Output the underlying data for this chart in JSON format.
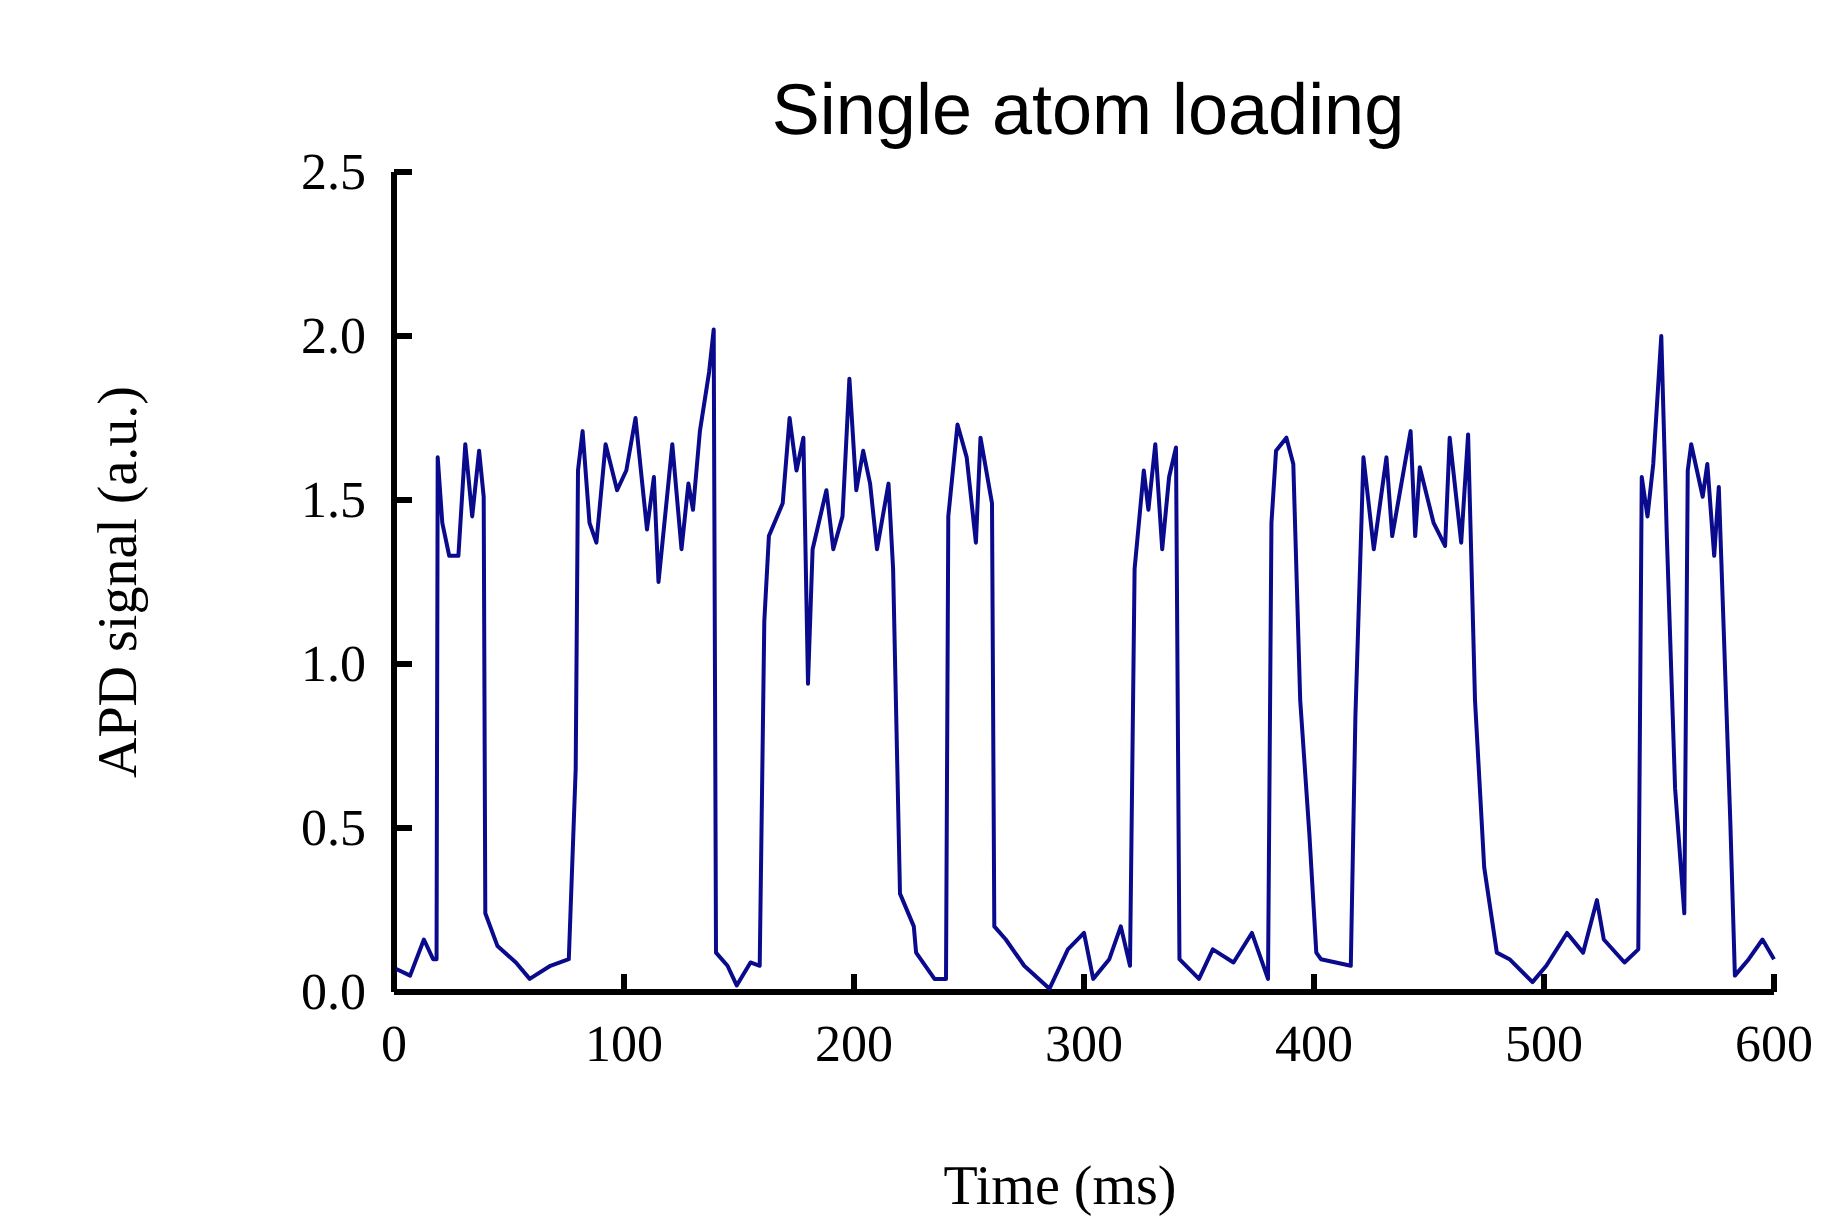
{
  "chart_data": {
    "type": "line",
    "title": "Single atom loading",
    "xlabel": "Time (ms)",
    "ylabel": "APD signal (a.u.)",
    "xlim": [
      0,
      600
    ],
    "xticks": [
      0,
      100,
      200,
      300,
      400,
      500,
      600
    ],
    "ylim": [
      0,
      2.5
    ],
    "yticks": [
      {
        "value": 0,
        "label": "0.0"
      },
      {
        "value": 0.5,
        "label": "0.5"
      },
      {
        "value": 1,
        "label": "1.0"
      },
      {
        "value": 1.5,
        "label": "1.5"
      },
      {
        "value": 2,
        "label": "2.0"
      },
      {
        "value": 2.5,
        "label": "2.5"
      }
    ],
    "grid": false,
    "marker": "none",
    "line_style": "solid",
    "series": [
      {
        "color": "#0a0a8c",
        "x": [
          1,
          7,
          13,
          17,
          18.5,
          19,
          21,
          24,
          28,
          31,
          34,
          37,
          39,
          39.7,
          45,
          53,
          59,
          68,
          76,
          79,
          80,
          82,
          85,
          88,
          92,
          97,
          101,
          105,
          110,
          113,
          115,
          121,
          125,
          128,
          130,
          133,
          137,
          139,
          140,
          145,
          149,
          155,
          159,
          161,
          163,
          169,
          172,
          175,
          178,
          180,
          182,
          188,
          191,
          195,
          198,
          201,
          204,
          207,
          210,
          215,
          217,
          220,
          226,
          227,
          235,
          240,
          241,
          245,
          249,
          253,
          255,
          260,
          261,
          266,
          274,
          285,
          293,
          300,
          304,
          311,
          316,
          320,
          322,
          326,
          328,
          331,
          334,
          337,
          340,
          341.5,
          350,
          356,
          365,
          373,
          380,
          381.5,
          383.5,
          388,
          391,
          394,
          398,
          401,
          403,
          416,
          418,
          421.5,
          426,
          431.5,
          434,
          442,
          444,
          446,
          452,
          457,
          459,
          464,
          467,
          470,
          474,
          479.5,
          485,
          495,
          501,
          510,
          517,
          523,
          526,
          535,
          541,
          542.5,
          545,
          547.5,
          551,
          553.4,
          557,
          561,
          562.5,
          564,
          569,
          571,
          574,
          576,
          581,
          583,
          589,
          595,
          600
        ],
        "values": [
          0.07,
          0.05,
          0.16,
          0.1,
          0.1,
          1.63,
          1.43,
          1.33,
          1.33,
          1.67,
          1.45,
          1.65,
          1.51,
          0.24,
          0.14,
          0.09,
          0.04,
          0.08,
          0.1,
          0.68,
          1.59,
          1.71,
          1.43,
          1.37,
          1.67,
          1.53,
          1.59,
          1.75,
          1.41,
          1.57,
          1.25,
          1.67,
          1.35,
          1.55,
          1.47,
          1.71,
          1.89,
          2.02,
          0.12,
          0.08,
          0.02,
          0.09,
          0.08,
          1.13,
          1.39,
          1.49,
          1.75,
          1.59,
          1.69,
          0.94,
          1.35,
          1.53,
          1.35,
          1.45,
          1.87,
          1.53,
          1.65,
          1.55,
          1.35,
          1.55,
          1.29,
          0.3,
          0.2,
          0.12,
          0.04,
          0.04,
          1.45,
          1.73,
          1.63,
          1.37,
          1.69,
          1.49,
          0.2,
          0.16,
          0.08,
          0.01,
          0.13,
          0.18,
          0.04,
          0.1,
          0.2,
          0.08,
          1.29,
          1.59,
          1.47,
          1.67,
          1.35,
          1.57,
          1.66,
          0.1,
          0.04,
          0.13,
          0.09,
          0.18,
          0.04,
          1.43,
          1.65,
          1.69,
          1.61,
          0.89,
          0.48,
          0.12,
          0.1,
          0.08,
          0.84,
          1.63,
          1.35,
          1.63,
          1.39,
          1.71,
          1.39,
          1.6,
          1.43,
          1.36,
          1.69,
          1.37,
          1.7,
          0.89,
          0.38,
          0.12,
          0.1,
          0.03,
          0.08,
          0.18,
          0.12,
          0.28,
          0.16,
          0.09,
          0.13,
          1.57,
          1.45,
          1.61,
          2.0,
          1.39,
          0.62,
          0.24,
          1.59,
          1.67,
          1.51,
          1.61,
          1.33,
          1.54,
          0.52,
          0.05,
          0.1,
          0.16,
          0.1
        ]
      }
    ]
  }
}
